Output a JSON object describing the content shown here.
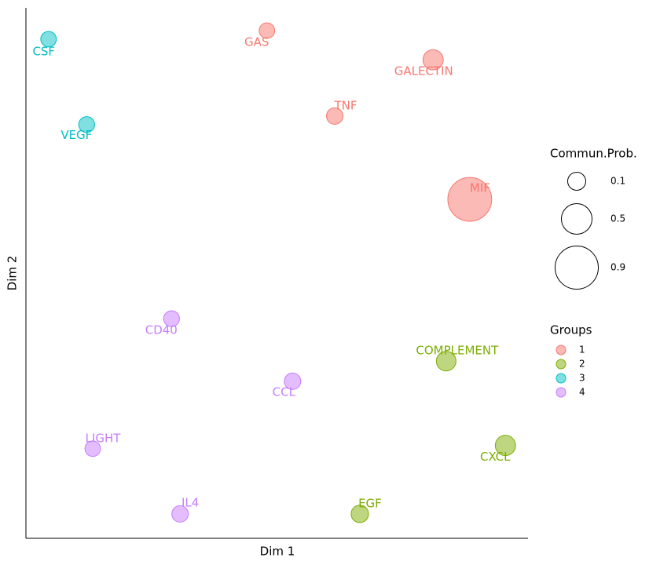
{
  "chart_data": {
    "type": "scatter",
    "x_label": "Dim 1",
    "y_label": "Dim 2",
    "xlim": [
      0,
      100
    ],
    "ylim": [
      0,
      100
    ],
    "size_legend_title": "Commun.Prob.",
    "size_legend_values": [
      0.1,
      0.5,
      0.9
    ],
    "group_legend_title": "Groups",
    "series": [
      {
        "name": "1",
        "color": "#F8766D",
        "labels": [
          "GAS",
          "GALECTIN",
          "TNF",
          "MIF"
        ],
        "x": [
          48.0,
          81.1,
          61.5,
          88.4
        ],
        "y": [
          95.7,
          90.2,
          79.6,
          63.9
        ],
        "sizes": [
          0.02,
          0.17,
          0.05,
          0.92
        ]
      },
      {
        "name": "2",
        "color": "#7CAE00",
        "labels": [
          "COMPLEMENT",
          "CXCL",
          "EGF"
        ],
        "x": [
          83.7,
          95.5,
          66.5
        ],
        "y": [
          33.4,
          17.5,
          4.6
        ],
        "sizes": [
          0.15,
          0.17,
          0.08
        ]
      },
      {
        "name": "3",
        "color": "#00BFC4",
        "labels": [
          "CSF",
          "VEGF"
        ],
        "x": [
          4.5,
          12.1
        ],
        "y": [
          94.1,
          78.0
        ],
        "sizes": [
          0.02,
          0.03
        ]
      },
      {
        "name": "4",
        "color": "#C77CFF",
        "labels": [
          "CD40",
          "CCL",
          "LIGHT",
          "IL4"
        ],
        "x": [
          29.0,
          53.1,
          13.3,
          30.7
        ],
        "y": [
          41.4,
          29.6,
          16.9,
          4.6
        ],
        "sizes": [
          0.03,
          0.05,
          0.02,
          0.05
        ]
      }
    ]
  }
}
